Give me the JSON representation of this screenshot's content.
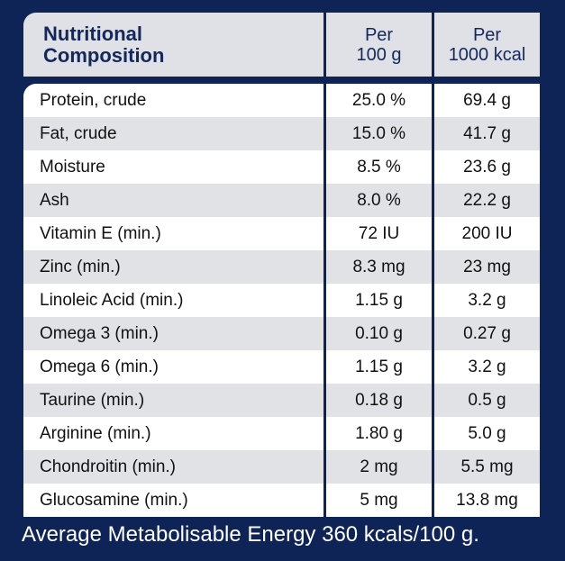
{
  "header": {
    "col1": "Nutritional\nComposition",
    "col2": "Per\n100 g",
    "col3": "Per\n1000 kcal"
  },
  "rows": [
    {
      "name": "Protein, crude",
      "per100g": "25.0 %",
      "per1000kcal": "69.4 g"
    },
    {
      "name": "Fat, crude",
      "per100g": "15.0 %",
      "per1000kcal": "41.7 g"
    },
    {
      "name": "Moisture",
      "per100g": "8.5 %",
      "per1000kcal": "23.6 g"
    },
    {
      "name": "Ash",
      "per100g": "8.0 %",
      "per1000kcal": "22.2 g"
    },
    {
      "name": "Vitamin E (min.)",
      "per100g": "72 IU",
      "per1000kcal": "200 IU"
    },
    {
      "name": "Zinc (min.)",
      "per100g": "8.3 mg",
      "per1000kcal": "23 mg"
    },
    {
      "name": "Linoleic Acid (min.)",
      "per100g": "1.15 g",
      "per1000kcal": "3.2 g"
    },
    {
      "name": "Omega 3 (min.)",
      "per100g": "0.10 g",
      "per1000kcal": "0.27 g"
    },
    {
      "name": "Omega 6 (min.)",
      "per100g": "1.15 g",
      "per1000kcal": "3.2 g"
    },
    {
      "name": "Taurine (min.)",
      "per100g": "0.18 g",
      "per1000kcal": "0.5 g"
    },
    {
      "name": "Arginine (min.)",
      "per100g": "1.80 g",
      "per1000kcal": "5.0 g"
    },
    {
      "name": "Chondroitin (min.)",
      "per100g": "2 mg",
      "per1000kcal": "5.5 mg"
    },
    {
      "name": "Glucosamine (min.)",
      "per100g": "5 mg",
      "per1000kcal": "13.8 mg"
    }
  ],
  "footer": "Average Metabolisable Energy 360 kcals/100 g.",
  "colors": {
    "background": "#0f2456",
    "header_bg": "#dfe1e6",
    "header_text": "#14285c",
    "row_white": "#ffffff",
    "row_grey": "#e1e2e6"
  }
}
